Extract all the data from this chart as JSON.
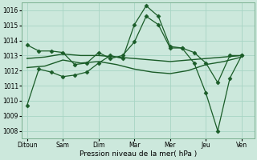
{
  "background_color": "#cce8dc",
  "grid_color": "#a8d4c4",
  "line_color": "#1a5c28",
  "marker_color": "#1a5c28",
  "xlabel": "Pression niveau de la mer( hPa )",
  "xtick_labels": [
    "Ditoun",
    "Sam",
    "Dim",
    "Mar",
    "Mer",
    "Jeu",
    "Ven"
  ],
  "xtick_positions": [
    0,
    1,
    2,
    3,
    4,
    5,
    6
  ],
  "xlim": [
    -0.15,
    6.35
  ],
  "ylim": [
    1007.5,
    1016.5
  ],
  "yticks": [
    1008,
    1009,
    1010,
    1011,
    1012,
    1013,
    1014,
    1015,
    1016
  ],
  "series": [
    {
      "x": [
        0,
        0.33,
        0.67,
        1.0,
        1.33,
        1.67,
        2.0,
        2.33,
        2.67,
        3.0,
        3.33,
        3.67,
        4.0,
        4.33,
        4.67,
        5.0,
        5.33,
        5.67,
        6.0
      ],
      "y": [
        1009.7,
        1012.1,
        1011.9,
        1011.6,
        1011.7,
        1011.9,
        1012.5,
        1013.0,
        1012.8,
        1015.05,
        1016.3,
        1015.6,
        1013.6,
        1013.5,
        1012.5,
        1010.5,
        1008.0,
        1011.5,
        1013.0
      ],
      "marker": "D",
      "markersize": 2.5,
      "linewidth": 0.9
    },
    {
      "x": [
        0,
        0.33,
        0.67,
        1.0,
        1.33,
        1.67,
        2.0,
        2.33,
        2.67,
        3.0,
        3.33,
        3.67,
        4.0,
        4.33,
        4.67,
        5.0,
        5.33,
        5.67,
        6.0
      ],
      "y": [
        1013.7,
        1013.3,
        1013.3,
        1013.2,
        1012.4,
        1012.5,
        1013.2,
        1012.8,
        1013.0,
        1013.9,
        1015.6,
        1015.05,
        1013.5,
        1013.5,
        1013.2,
        1012.5,
        1011.2,
        1013.0,
        1013.0
      ],
      "marker": "D",
      "markersize": 2.5,
      "linewidth": 0.9
    },
    {
      "x": [
        0,
        0.5,
        1.0,
        1.5,
        2.0,
        2.5,
        3.0,
        3.5,
        4.0,
        4.5,
        5.0,
        5.5,
        6.0
      ],
      "y": [
        1012.2,
        1012.3,
        1012.7,
        1012.5,
        1012.6,
        1012.4,
        1012.1,
        1011.9,
        1011.8,
        1012.0,
        1012.4,
        1012.6,
        1012.9
      ],
      "marker": null,
      "markersize": 0,
      "linewidth": 1.0
    },
    {
      "x": [
        0,
        0.5,
        1.0,
        1.5,
        2.0,
        2.5,
        3.0,
        3.5,
        4.0,
        4.5,
        5.0,
        5.5,
        6.0
      ],
      "y": [
        1012.8,
        1012.9,
        1013.1,
        1013.0,
        1013.0,
        1012.9,
        1012.8,
        1012.7,
        1012.6,
        1012.7,
        1012.8,
        1012.9,
        1013.0
      ],
      "marker": null,
      "markersize": 0,
      "linewidth": 1.0
    }
  ]
}
